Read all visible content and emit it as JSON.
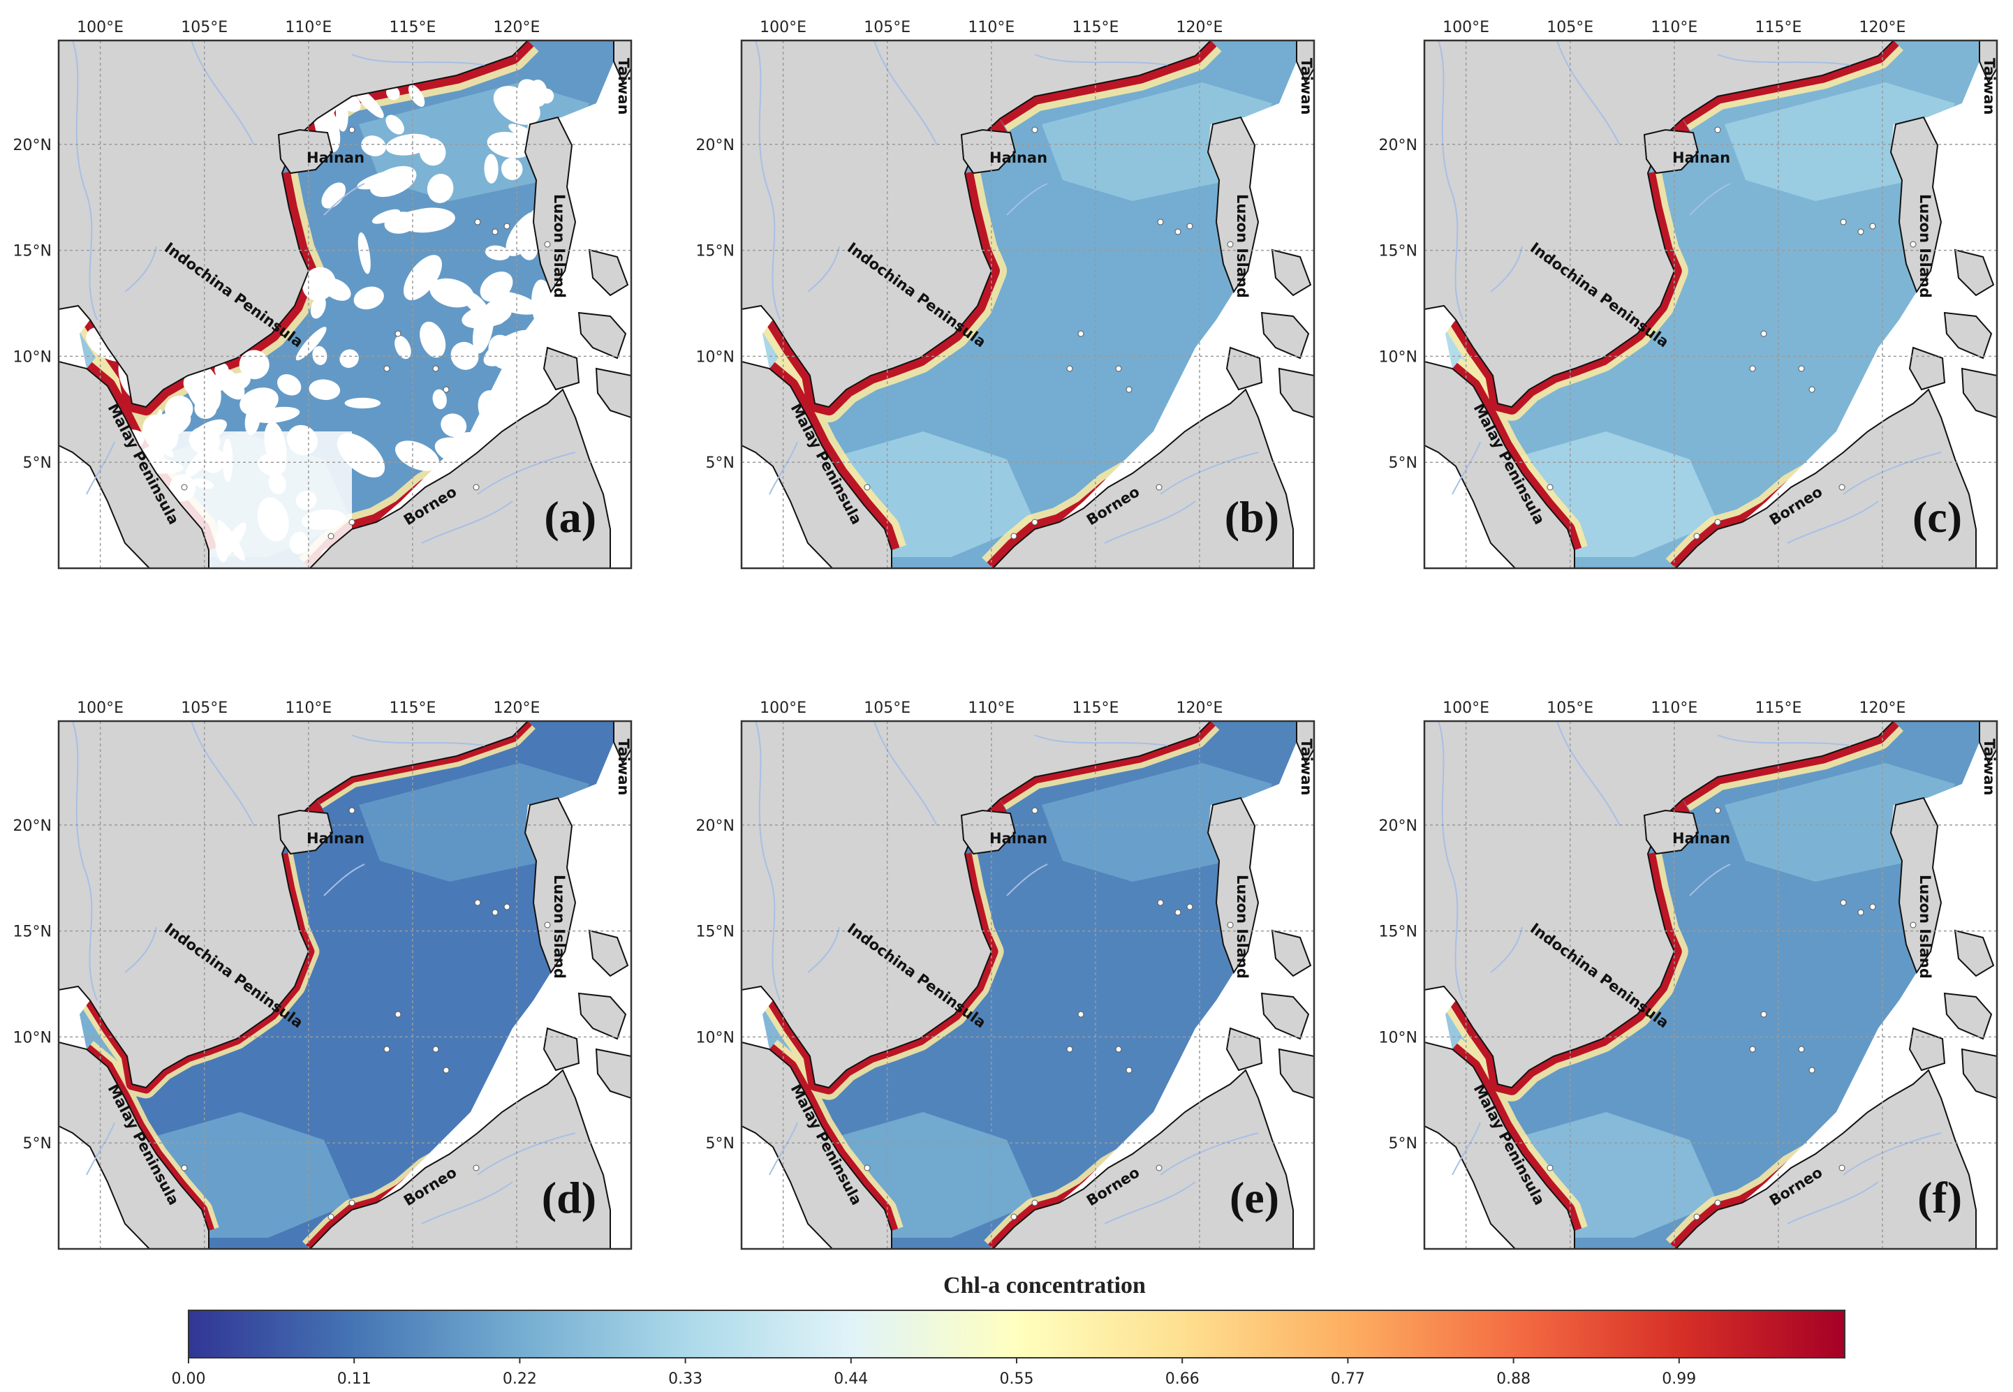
{
  "lon_ticks": [
    "100°E",
    "105°E",
    "110°E",
    "115°E",
    "120°E"
  ],
  "lat_ticks": [
    "20°N",
    "15°N",
    "10°N",
    "5°N"
  ],
  "place_names": {
    "hainan": "Hainan",
    "indochina": "Indochina Peninsula",
    "malay": "Malay Peninsula",
    "borneo": "Borneo",
    "luzon": "Luzon Island",
    "taiwan": "Taiwan"
  },
  "panels": [
    {
      "label": "(a)",
      "coverage": "sparse",
      "coastal_intensity": 1.0,
      "offshore_level": 0.18
    },
    {
      "label": "(b)",
      "coverage": "full",
      "coastal_intensity": 1.0,
      "offshore_level": 0.22
    },
    {
      "label": "(c)",
      "coverage": "full",
      "coastal_intensity": 0.9,
      "offshore_level": 0.24
    },
    {
      "label": "(d)",
      "coverage": "full",
      "coastal_intensity": 0.7,
      "offshore_level": 0.12
    },
    {
      "label": "(e)",
      "coverage": "full",
      "coastal_intensity": 0.8,
      "offshore_level": 0.14
    },
    {
      "label": "(f)",
      "coverage": "full",
      "coastal_intensity": 0.9,
      "offshore_level": 0.18
    }
  ],
  "colorbar": {
    "title": "Chl-a concentration",
    "ticks": [
      "0.00",
      "0.11",
      "0.22",
      "0.33",
      "0.44",
      "0.55",
      "0.66",
      "0.77",
      "0.88",
      "0.99"
    ],
    "colors": [
      "#313695",
      "#4575b4",
      "#74add1",
      "#abd9e9",
      "#e0f3f8",
      "#ffffbf",
      "#fee090",
      "#fdae61",
      "#f46d43",
      "#d73027",
      "#a50026"
    ]
  },
  "palette": {
    "land": "#d3d3d3",
    "frame": "#333333",
    "grid": "#9a9a9a",
    "river": "#a8bfe6"
  }
}
